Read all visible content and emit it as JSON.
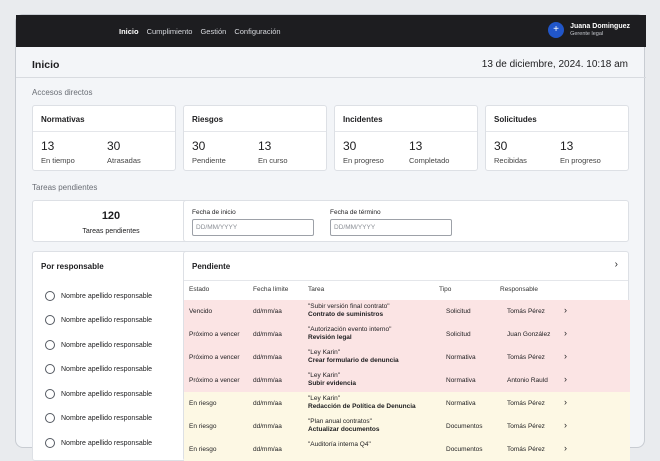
{
  "nav": [
    "Inicio",
    "Cumplimiento",
    "Gestión",
    "Configuración"
  ],
  "user": {
    "initial": "+",
    "name": "Juana Dominguez",
    "role": "Gerente legal"
  },
  "page": {
    "title": "Inicio",
    "datetime": "13 de diciembre, 2024. 10:18 am"
  },
  "shortcuts_label": "Accesos directos",
  "shortcuts": [
    {
      "title": "Normativas",
      "a_num": "13",
      "a_label": "En tiempo",
      "b_num": "30",
      "b_label": "Atrasadas"
    },
    {
      "title": "Riesgos",
      "a_num": "30",
      "a_label": "Pendiente",
      "b_num": "13",
      "b_label": "En curso"
    },
    {
      "title": "Incidentes",
      "a_num": "30",
      "a_label": "En progreso",
      "b_num": "13",
      "b_label": "Completado"
    },
    {
      "title": "Solicitudes",
      "a_num": "30",
      "a_label": "Recibidas",
      "b_num": "13",
      "b_label": "En progreso"
    }
  ],
  "tasks_label": "Tareas pendientes",
  "tasks_total": {
    "number": "120",
    "label": "Tareas pendientes"
  },
  "filters": {
    "start_label": "Fecha de inicio",
    "start_placeholder": "DD/MM/YYYY",
    "end_label": "Fecha de término",
    "end_placeholder": "DD/MM/YYYY"
  },
  "responsables": {
    "title": "Por responsable",
    "items": [
      "Nombre apellido responsable",
      "Nombre apellido responsable",
      "Nombre apellido responsable",
      "Nombre apellido responsable",
      "Nombre apellido responsable",
      "Nombre apellido responsable",
      "Nombre apellido responsable"
    ]
  },
  "pending": {
    "title": "Pendiente",
    "columns": [
      "Estado",
      "Fecha límite",
      "Tarea",
      "Tipo",
      "Responsable"
    ],
    "rows": [
      {
        "estado": "Vencido",
        "fecha": "dd/mm/aa",
        "subtitle": "\"Subir versión final contrato\"",
        "tarea": "Contrato de suministros",
        "tipo": "Solicitud",
        "resp": "Tomás Pérez",
        "color": "#fbe4e4"
      },
      {
        "estado": "Próximo a vencer",
        "fecha": "dd/mm/aa",
        "subtitle": "\"Autorización evento interno\"",
        "tarea": "Revisión legal",
        "tipo": "Solicitud",
        "resp": "Juan González",
        "color": "#fbe4e4"
      },
      {
        "estado": "Próximo a vencer",
        "fecha": "dd/mm/aa",
        "subtitle": "\"Ley Karin\"",
        "tarea": "Crear formulario de denuncia",
        "tipo": "Normativa",
        "resp": "Tomás Pérez",
        "color": "#fbe4e4"
      },
      {
        "estado": "Próximo a vencer",
        "fecha": "dd/mm/aa",
        "subtitle": "\"Ley Karin\"",
        "tarea": "Subir evidencia",
        "tipo": "Normativa",
        "resp": "Antonio Rauld",
        "color": "#fbe4e4"
      },
      {
        "estado": "En riesgo",
        "fecha": "dd/mm/aa",
        "subtitle": "\"Ley Karin\"",
        "tarea": "Redacción de Política de Denuncia",
        "tipo": "Normativa",
        "resp": "Tomás Pérez",
        "color": "#fdf8e4"
      },
      {
        "estado": "En riesgo",
        "fecha": "dd/mm/aa",
        "subtitle": "\"Plan anual contratos\"",
        "tarea": "Actualizar documentos",
        "tipo": "Documentos",
        "resp": "Tomás Pérez",
        "color": "#fdf8e4"
      },
      {
        "estado": "En riesgo",
        "fecha": "dd/mm/aa",
        "subtitle": "\"Auditoría interna Q4\"",
        "tarea": "",
        "tipo": "Documentos",
        "resp": "Tomás Pérez",
        "color": "#fdf8e4"
      }
    ]
  }
}
